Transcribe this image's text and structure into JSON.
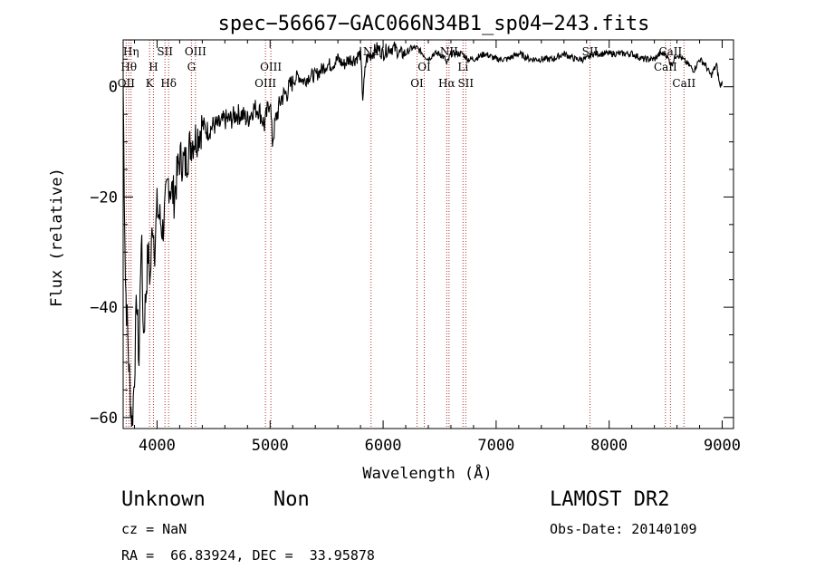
{
  "chart_data": {
    "type": "line",
    "title": "spec−56667−GAC066N34B1_sp04−243.fits",
    "xlabel": "Wavelength (Å)",
    "ylabel": "Flux (relative)",
    "xlim": [
      3700,
      9100
    ],
    "ylim": [
      -62,
      8.5
    ],
    "xticks": [
      4000,
      5000,
      6000,
      7000,
      8000,
      9000
    ],
    "xtick_labels": [
      "4000",
      "5000",
      "6000",
      "7000",
      "8000",
      "9000"
    ],
    "yticks": [
      -60,
      -40,
      -20,
      0
    ],
    "ytick_labels": [
      "−60",
      "−40",
      "−20",
      "0"
    ],
    "line_color": "#000000",
    "marker_color": "#b03030",
    "grid": false,
    "series": [
      {
        "x": [
          3700,
          3720,
          3740,
          3760,
          3780,
          3800,
          3820,
          3840,
          3860,
          3880,
          3900,
          3920,
          3940,
          3960,
          3980,
          4000,
          4050,
          4100,
          4150,
          4200,
          4250,
          4300,
          4350,
          4400,
          4450,
          4500,
          4550,
          4600,
          4650,
          4700,
          4750,
          4800,
          4850,
          4900,
          4950,
          5000,
          5020,
          5050,
          5100,
          5150,
          5200,
          5250,
          5300,
          5350,
          5400,
          5450,
          5500,
          5550,
          5600,
          5650,
          5700,
          5750,
          5800,
          5820,
          5850,
          5900,
          5950,
          6000,
          6050,
          6100,
          6150,
          6200,
          6250,
          6300,
          6350,
          6400,
          6450,
          6500,
          6550,
          6562,
          6600,
          6650,
          6700,
          6750,
          6800,
          6900,
          7000,
          7100,
          7200,
          7300,
          7400,
          7500,
          7600,
          7700,
          7800,
          7850,
          7900,
          8000,
          8100,
          8200,
          8300,
          8400,
          8450,
          8500,
          8550,
          8600,
          8650,
          8700,
          8750,
          8800,
          8850,
          8900,
          8950,
          8980,
          9000
        ],
        "y": [
          0,
          -35,
          -45,
          -55,
          -61,
          -52,
          -38,
          -50,
          -26,
          -45,
          -38,
          -30,
          -35,
          -24,
          -29,
          -22,
          -26,
          -17,
          -20,
          -13,
          -14,
          -10,
          -9,
          -7,
          -8,
          -7,
          -7,
          -6,
          -6,
          -5,
          -5,
          -6,
          -4,
          -4,
          -7,
          -2,
          -10,
          -6,
          -2,
          -1,
          1,
          2,
          1,
          2,
          2,
          3,
          4,
          4,
          5,
          4,
          5,
          5,
          6,
          -2,
          5,
          6,
          7,
          6,
          7,
          7,
          6,
          6,
          7,
          7,
          6,
          5,
          6,
          6,
          5,
          4,
          6,
          6,
          6,
          5,
          5,
          6,
          5,
          5,
          6,
          5,
          5,
          5,
          6,
          5,
          5,
          6,
          6,
          6,
          6,
          6,
          5,
          5,
          6,
          6,
          4,
          6,
          5,
          4,
          3,
          5,
          4,
          2,
          4,
          0,
          1
        ]
      }
    ],
    "lines": [
      {
        "x": 3727,
        "label": "OII",
        "row": 2
      },
      {
        "x": 3750,
        "label": "Hθ",
        "row": 1
      },
      {
        "x": 3770,
        "label": "Hη",
        "row": 0
      },
      {
        "x": 3934,
        "label": "K",
        "row": 2
      },
      {
        "x": 3968,
        "label": "H",
        "row": 1
      },
      {
        "x": 4070,
        "label": "SII",
        "row": 0
      },
      {
        "x": 4102,
        "label": "Hδ",
        "row": 2
      },
      {
        "x": 4304,
        "label": "G",
        "row": 1
      },
      {
        "x": 4340,
        "label": "OIII",
        "row": 0
      },
      {
        "x": 4959,
        "label": "OIII",
        "row": 2
      },
      {
        "x": 5007,
        "label": "OIII",
        "row": 1
      },
      {
        "x": 5893,
        "label": "Na",
        "row": 0
      },
      {
        "x": 6300,
        "label": "OI",
        "row": 2
      },
      {
        "x": 6364,
        "label": "OI",
        "row": 1
      },
      {
        "x": 6563,
        "label": "Hα",
        "row": 2
      },
      {
        "x": 6583,
        "label": "NII",
        "row": 0
      },
      {
        "x": 6707,
        "label": "Li",
        "row": 1
      },
      {
        "x": 6731,
        "label": "SII",
        "row": 2
      },
      {
        "x": 7830,
        "label": "SII",
        "row": 0
      },
      {
        "x": 8498,
        "label": "CaII",
        "row": 1
      },
      {
        "x": 8542,
        "label": "CaII",
        "row": 0
      },
      {
        "x": 8662,
        "label": "CaII",
        "row": 2
      }
    ]
  },
  "info": {
    "object_class": "Unknown",
    "object_subclass": "Non",
    "cz": "cz = NaN",
    "radec": "RA =  66.83924, DEC =  33.95878",
    "survey": "LAMOST DR2",
    "obs_date": "Obs-Date: 20140109"
  }
}
